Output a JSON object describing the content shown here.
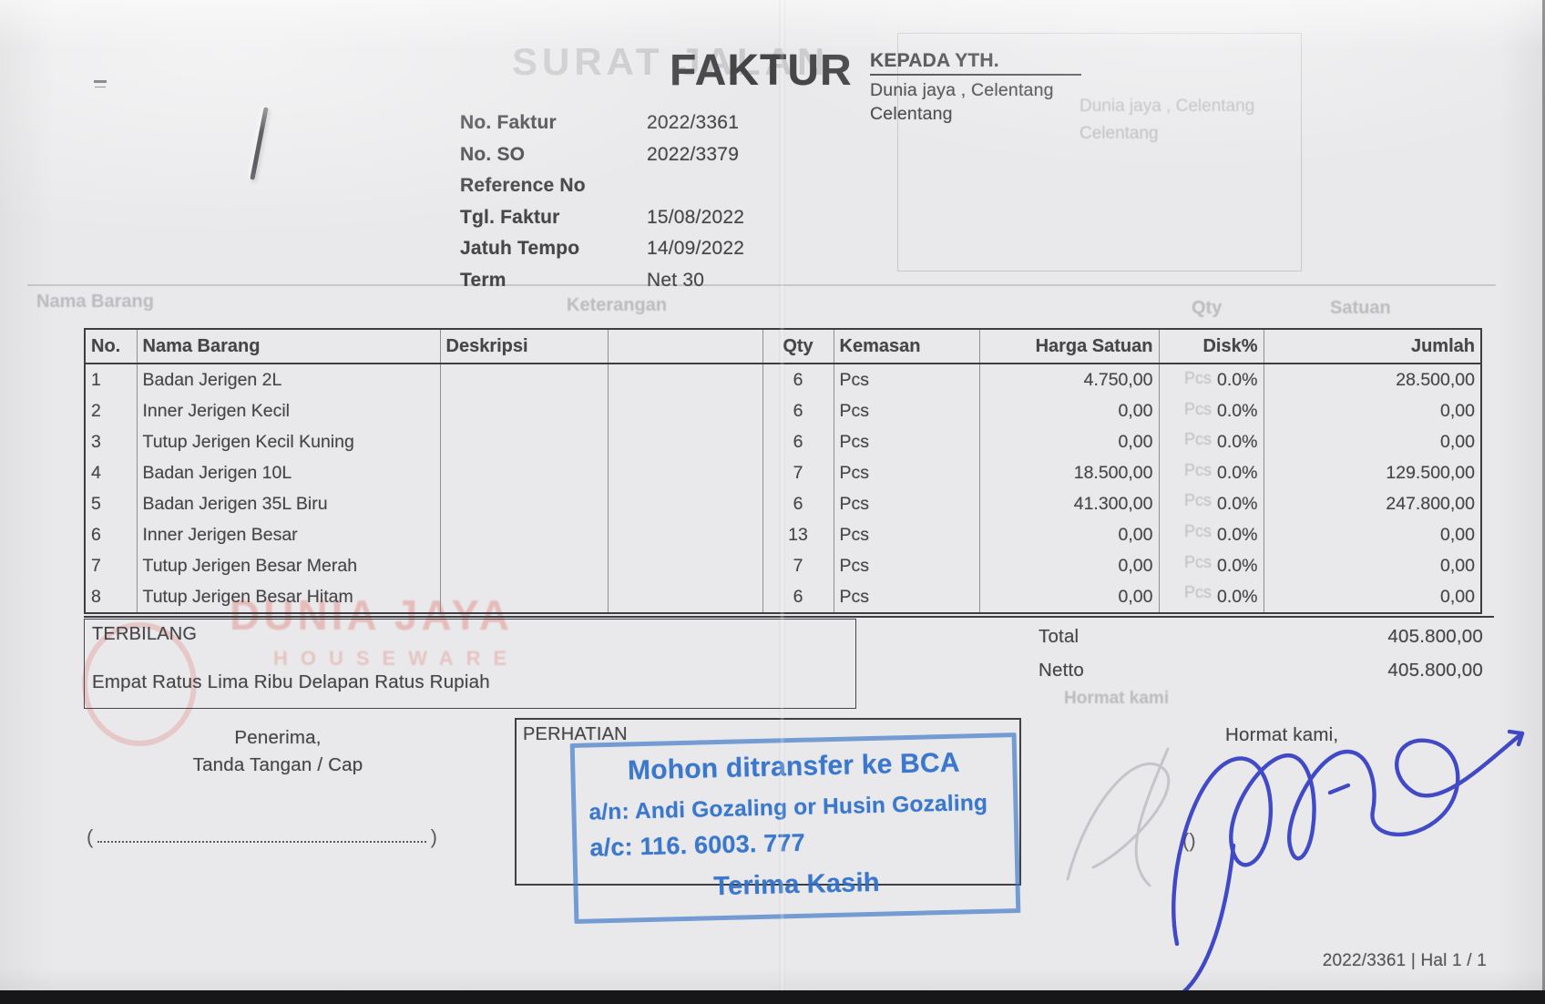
{
  "invoice": {
    "title": "FAKTUR",
    "recipient": {
      "label": "KEPADA YTH.",
      "line1": "Dunia jaya , Celentang",
      "line2": "Celentang"
    },
    "meta": [
      {
        "label": "No. Faktur",
        "value": "2022/3361"
      },
      {
        "label": "No. SO",
        "value": "2022/3379"
      },
      {
        "label": "Reference No",
        "value": ""
      },
      {
        "label": "Tgl. Faktur",
        "value": "15/08/2022"
      },
      {
        "label": "Jatuh Tempo",
        "value": "14/09/2022"
      },
      {
        "label": "Term",
        "value": "Net 30"
      }
    ],
    "table": {
      "headers": [
        "No.",
        "Nama Barang",
        "Deskripsi",
        "Qty",
        "Kemasan",
        "Harga Satuan",
        "Disk%",
        "Jumlah"
      ],
      "items": [
        {
          "no": "1",
          "nama": "Badan Jerigen 2L",
          "deskripsi": "",
          "qty": "6",
          "kemasan": "Pcs",
          "harga": "4.750,00",
          "disk": "0.0%",
          "jumlah": "28.500,00"
        },
        {
          "no": "2",
          "nama": "Inner Jerigen Kecil",
          "deskripsi": "",
          "qty": "6",
          "kemasan": "Pcs",
          "harga": "0,00",
          "disk": "0.0%",
          "jumlah": "0,00"
        },
        {
          "no": "3",
          "nama": "Tutup Jerigen Kecil Kuning",
          "deskripsi": "",
          "qty": "6",
          "kemasan": "Pcs",
          "harga": "0,00",
          "disk": "0.0%",
          "jumlah": "0,00"
        },
        {
          "no": "4",
          "nama": "Badan Jerigen 10L",
          "deskripsi": "",
          "qty": "7",
          "kemasan": "Pcs",
          "harga": "18.500,00",
          "disk": "0.0%",
          "jumlah": "129.500,00"
        },
        {
          "no": "5",
          "nama": "Badan Jerigen 35L Biru",
          "deskripsi": "",
          "qty": "6",
          "kemasan": "Pcs",
          "harga": "41.300,00",
          "disk": "0.0%",
          "jumlah": "247.800,00"
        },
        {
          "no": "6",
          "nama": "Inner Jerigen Besar",
          "deskripsi": "",
          "qty": "13",
          "kemasan": "Pcs",
          "harga": "0,00",
          "disk": "0.0%",
          "jumlah": "0,00"
        },
        {
          "no": "7",
          "nama": "Tutup Jerigen Besar Merah",
          "deskripsi": "",
          "qty": "7",
          "kemasan": "Pcs",
          "harga": "0,00",
          "disk": "0.0%",
          "jumlah": "0,00"
        },
        {
          "no": "8",
          "nama": "Tutup Jerigen Besar Hitam",
          "deskripsi": "",
          "qty": "6",
          "kemasan": "Pcs",
          "harga": "0,00",
          "disk": "0.0%",
          "jumlah": "0,00"
        }
      ]
    },
    "terbilang": {
      "label": "TERBILANG",
      "text": "Empat Ratus Lima Ribu Delapan Ratus Rupiah"
    },
    "totals": [
      {
        "label": "Total",
        "value": "405.800,00"
      },
      {
        "label": "Netto",
        "value": "405.800,00"
      }
    ],
    "penerima": {
      "line1": "Penerima,",
      "line2": "Tanda Tangan / Cap"
    },
    "perhatian": {
      "label": "PERHATIAN",
      "stamp_line1": "Mohon ditransfer ke BCA",
      "stamp_line2": "a/n: Andi Gozaling or Husin Gozaling",
      "stamp_line3": "a/c: 116. 6003. 777",
      "stamp_line4": "Terima Kasih"
    },
    "hormat_label": "Hormat kami,",
    "footer": "2022/3361 | Hal 1 / 1"
  },
  "ghosts": {
    "title": "SURAT JALAN",
    "recipient_line1": "Dunia jaya , Celentang",
    "recipient_line2": "Celentang",
    "header_nama": "Nama Barang",
    "header_keterangan": "Keterangan",
    "header_qty": "Qty",
    "header_satuan": "Satuan",
    "unit": "Pcs",
    "hormat": "Hormat kami",
    "logo_line1": "DUNIA JAYA",
    "logo_line2": "HOUSEWARE"
  },
  "colors": {
    "stamp_blue": "#2e70c9",
    "signature_blue": "#2a34c2",
    "logo_red": "#e2746e",
    "paper": "#e9e9eb"
  }
}
